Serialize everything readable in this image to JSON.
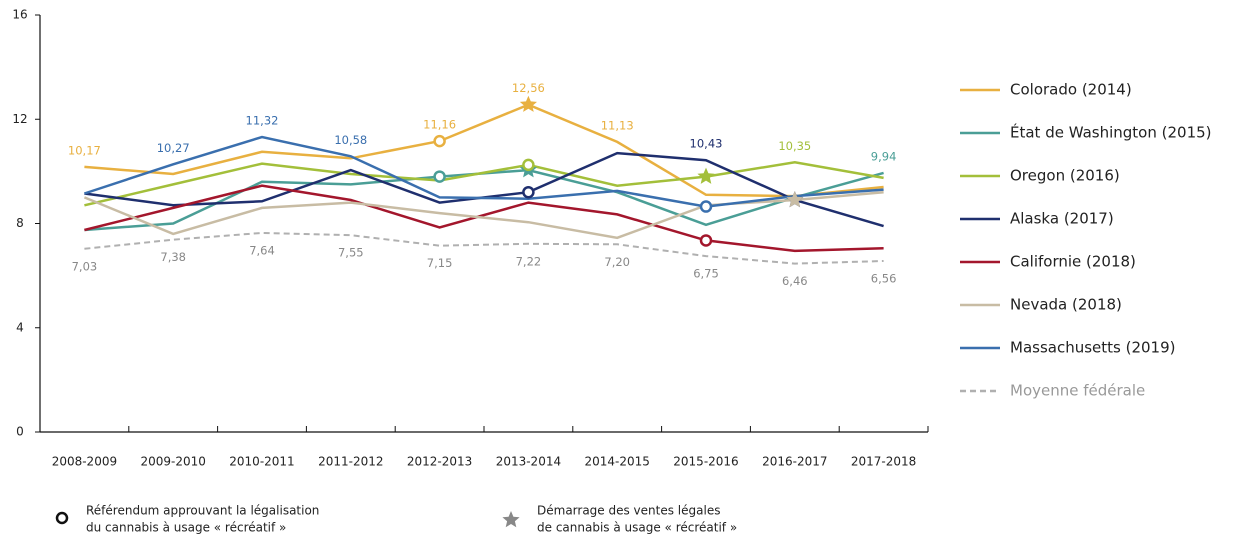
{
  "chart_data": {
    "type": "line",
    "categories": [
      "2008-2009",
      "2009-2010",
      "2010-2011",
      "2011-2012",
      "2012-2013",
      "2013-2014",
      "2014-2015",
      "2015-2016",
      "2016-2017",
      "2017-2018"
    ],
    "ylim": [
      0,
      16
    ],
    "yticks": [
      0,
      4,
      8,
      12,
      16
    ],
    "series": [
      {
        "name": "Colorado (2014)",
        "color": "#e8b040",
        "values": [
          10.17,
          9.9,
          10.75,
          10.5,
          11.16,
          12.56,
          11.13,
          9.1,
          9.05,
          9.4
        ],
        "value_labels": [
          "10,17",
          null,
          null,
          null,
          "11,16",
          "12,56",
          "11,13",
          null,
          null,
          null
        ],
        "referendum": 4,
        "sales_start": 5
      },
      {
        "name": "État de Washington (2015)",
        "color": "#4a9e96",
        "values": [
          7.75,
          8.0,
          9.6,
          9.5,
          9.8,
          10.05,
          9.2,
          7.95,
          9.0,
          9.94
        ],
        "value_labels": [
          null,
          null,
          null,
          null,
          null,
          null,
          null,
          null,
          null,
          "9,94"
        ],
        "referendum": 4,
        "sales_start": 5
      },
      {
        "name": "Oregon (2016)",
        "color": "#a3bf3a",
        "values": [
          8.7,
          9.5,
          10.3,
          9.9,
          9.65,
          10.25,
          9.45,
          9.8,
          10.35,
          9.75
        ],
        "value_labels": [
          null,
          null,
          null,
          null,
          null,
          null,
          null,
          null,
          "10,35",
          null
        ],
        "referendum": 5,
        "sales_start": 7
      },
      {
        "name": "Alaska (2017)",
        "color": "#1f2f6e",
        "values": [
          9.15,
          8.7,
          8.85,
          10.05,
          8.8,
          9.2,
          10.7,
          10.43,
          8.9,
          7.9
        ],
        "value_labels": [
          null,
          null,
          null,
          null,
          null,
          null,
          null,
          "10,43",
          null,
          null
        ],
        "referendum": 5,
        "sales_start": 8
      },
      {
        "name": "Californie (2018)",
        "color": "#a3162c",
        "values": [
          7.75,
          8.6,
          9.45,
          8.9,
          7.85,
          8.8,
          8.35,
          7.35,
          6.95,
          7.05
        ],
        "value_labels": [
          null,
          null,
          null,
          null,
          null,
          null,
          null,
          null,
          null,
          null
        ],
        "referendum": 7
      },
      {
        "name": "Nevada (2018)",
        "color": "#c8bca4",
        "values": [
          9.0,
          7.6,
          8.6,
          8.8,
          8.4,
          8.05,
          7.45,
          8.7,
          8.9,
          9.2
        ],
        "value_labels": [
          null,
          null,
          null,
          null,
          null,
          null,
          null,
          null,
          null,
          null
        ],
        "sales_start": 8
      },
      {
        "name": "Massachusetts (2019)",
        "color": "#3a6fae",
        "values": [
          9.15,
          10.27,
          11.32,
          10.58,
          9.0,
          8.95,
          9.25,
          8.65,
          9.05,
          9.3
        ],
        "value_labels": [
          null,
          "10,27",
          "11,32",
          "10,58",
          null,
          null,
          null,
          null,
          null,
          null
        ],
        "referendum": 7
      },
      {
        "name": "Moyenne fédérale",
        "color": "#b0b0b0",
        "dash": true,
        "values": [
          7.03,
          7.38,
          7.64,
          7.55,
          7.15,
          7.22,
          7.2,
          6.75,
          6.46,
          6.56
        ],
        "value_labels": [
          "7,03",
          "7,38",
          "7,64",
          "7,55",
          "7,15",
          "7,22",
          "7,20",
          "6,75",
          "6,46",
          "6,56"
        ]
      }
    ],
    "notes": {
      "referendum": [
        "Référendum approuvant la légalisation",
        "du cannabis à usage « récréatif »"
      ],
      "sales_start": [
        "Démarrage des ventes légales",
        "de cannabis à usage « récréatif »"
      ]
    }
  }
}
